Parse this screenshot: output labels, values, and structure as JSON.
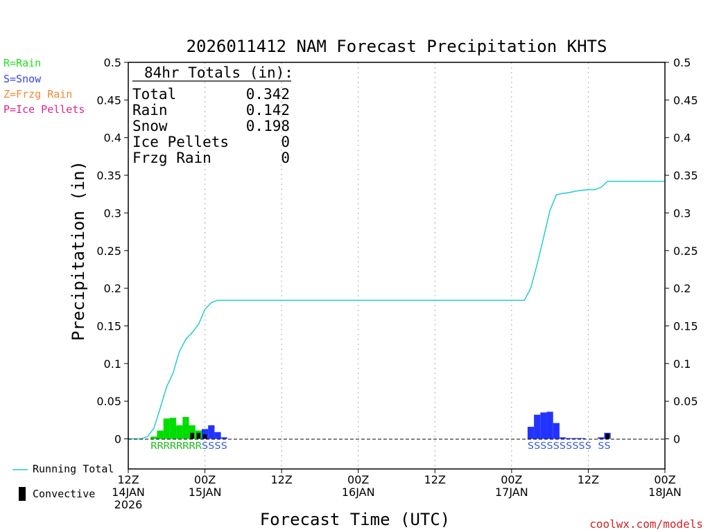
{
  "title": "2026011412 NAM Forecast Precipitation KHTS",
  "legend_types": [
    {
      "label": "R=Rain",
      "color": "#22dd22"
    },
    {
      "label": "S=Snow",
      "color": "#3344ee"
    },
    {
      "label": "Z=Frzg Rain",
      "color": "#ee8833"
    },
    {
      "label": "P=Ice Pellets",
      "color": "#dd2288"
    }
  ],
  "totals": {
    "header": "84hr Totals (in):",
    "rows": [
      {
        "label": "Total",
        "value": "0.342"
      },
      {
        "label": "Rain",
        "value": "0.142"
      },
      {
        "label": "Snow",
        "value": "0.198"
      },
      {
        "label": "Ice Pellets",
        "value": "0"
      },
      {
        "label": "Frzg Rain",
        "value": "0"
      }
    ]
  },
  "bottom_legend": {
    "running_total": "Running Total",
    "convective": "Convective"
  },
  "credit": "coolwx.com/models",
  "colors": {
    "rain": "#00dd00",
    "snow": "#2233ff",
    "convective": "#000000",
    "running_total": "#22cccc",
    "rain_text": "#22bb22",
    "snow_text": "#3355dd",
    "credit": "#cc2222"
  },
  "chart_data": {
    "type": "bar",
    "title": "2026011412 NAM Forecast Precipitation KHTS",
    "xlabel": "Forecast Time (UTC)",
    "ylabel": "Precipitation (in)",
    "ylim": [
      -0.04,
      0.5
    ],
    "xlim": [
      0,
      84
    ],
    "yticks": [
      0,
      0.05,
      0.1,
      0.15,
      0.2,
      0.25,
      0.3,
      0.35,
      0.4,
      0.45,
      0.5
    ],
    "ytick_labels": [
      "0",
      "0.05",
      "0.1",
      "0.15",
      "0.2",
      "0.25",
      "0.3",
      "0.35",
      "0.4",
      "0.45",
      "0.5"
    ],
    "xticks": [
      {
        "hour": 0,
        "lines": [
          "12Z",
          "14JAN",
          "2026"
        ]
      },
      {
        "hour": 12,
        "lines": [
          "00Z",
          "15JAN"
        ]
      },
      {
        "hour": 24,
        "lines": [
          "12Z"
        ]
      },
      {
        "hour": 36,
        "lines": [
          "00Z",
          "16JAN"
        ]
      },
      {
        "hour": 48,
        "lines": [
          "12Z"
        ]
      },
      {
        "hour": 60,
        "lines": [
          "00Z",
          "17JAN"
        ]
      },
      {
        "hour": 72,
        "lines": [
          "12Z"
        ]
      },
      {
        "hour": 84,
        "lines": [
          "00Z",
          "18JAN"
        ]
      }
    ],
    "gridlines_at_hours": [
      12,
      24,
      36,
      48,
      60,
      72
    ],
    "bars": [
      {
        "hour": 4,
        "value": 0.003,
        "type": "rain"
      },
      {
        "hour": 5,
        "value": 0.011,
        "type": "rain"
      },
      {
        "hour": 6,
        "value": 0.027,
        "type": "rain"
      },
      {
        "hour": 7,
        "value": 0.028,
        "type": "rain"
      },
      {
        "hour": 8,
        "value": 0.018,
        "type": "rain"
      },
      {
        "hour": 9,
        "value": 0.029,
        "type": "rain"
      },
      {
        "hour": 10,
        "value": 0.018,
        "type": "rain"
      },
      {
        "hour": 11,
        "value": 0.011,
        "type": "rain"
      },
      {
        "hour": 12,
        "value": 0.013,
        "type": "snow"
      },
      {
        "hour": 13,
        "value": 0.018,
        "type": "snow"
      },
      {
        "hour": 14,
        "value": 0.009,
        "type": "snow"
      },
      {
        "hour": 15,
        "value": 0.002,
        "type": "snow"
      },
      {
        "hour": 63,
        "value": 0.016,
        "type": "snow"
      },
      {
        "hour": 64,
        "value": 0.032,
        "type": "snow"
      },
      {
        "hour": 65,
        "value": 0.035,
        "type": "snow"
      },
      {
        "hour": 66,
        "value": 0.036,
        "type": "snow"
      },
      {
        "hour": 67,
        "value": 0.021,
        "type": "snow"
      },
      {
        "hour": 68,
        "value": 0.002,
        "type": "snow"
      },
      {
        "hour": 69,
        "value": 0.001,
        "type": "snow"
      },
      {
        "hour": 70,
        "value": 0.001,
        "type": "snow"
      },
      {
        "hour": 71,
        "value": 0.001,
        "type": "snow"
      },
      {
        "hour": 74,
        "value": 0.002,
        "type": "snow"
      },
      {
        "hour": 75,
        "value": 0.008,
        "type": "snow"
      }
    ],
    "convective": [
      {
        "hour": 10,
        "value": 0.008
      },
      {
        "hour": 11,
        "value": 0.008
      },
      {
        "hour": 12,
        "value": 0.006
      },
      {
        "hour": 75,
        "value": 0.007
      }
    ],
    "running_total": {
      "hours": [
        0,
        2,
        3,
        4,
        5,
        6,
        7,
        8,
        9,
        10,
        11,
        12,
        13,
        14,
        15,
        16,
        62,
        63,
        64,
        65,
        66,
        67,
        68,
        69,
        70,
        71,
        72,
        73,
        74,
        75,
        84
      ],
      "values": [
        0,
        0,
        0.003,
        0.014,
        0.041,
        0.069,
        0.087,
        0.116,
        0.132,
        0.141,
        0.152,
        0.172,
        0.181,
        0.184,
        0.184,
        0.184,
        0.184,
        0.2,
        0.232,
        0.267,
        0.303,
        0.324,
        0.326,
        0.327,
        0.329,
        0.33,
        0.331,
        0.331,
        0.334,
        0.342,
        0.342
      ]
    },
    "precip_type_labels": [
      {
        "hour": 4,
        "text": "RRRRRRRR",
        "type": "rain"
      },
      {
        "hour": 12,
        "text": "SSSS",
        "type": "snow"
      },
      {
        "hour": 63,
        "text": "SSSSSSSSSS",
        "type": "snow"
      },
      {
        "hour": 74,
        "text": "SS",
        "type": "snow"
      }
    ]
  }
}
